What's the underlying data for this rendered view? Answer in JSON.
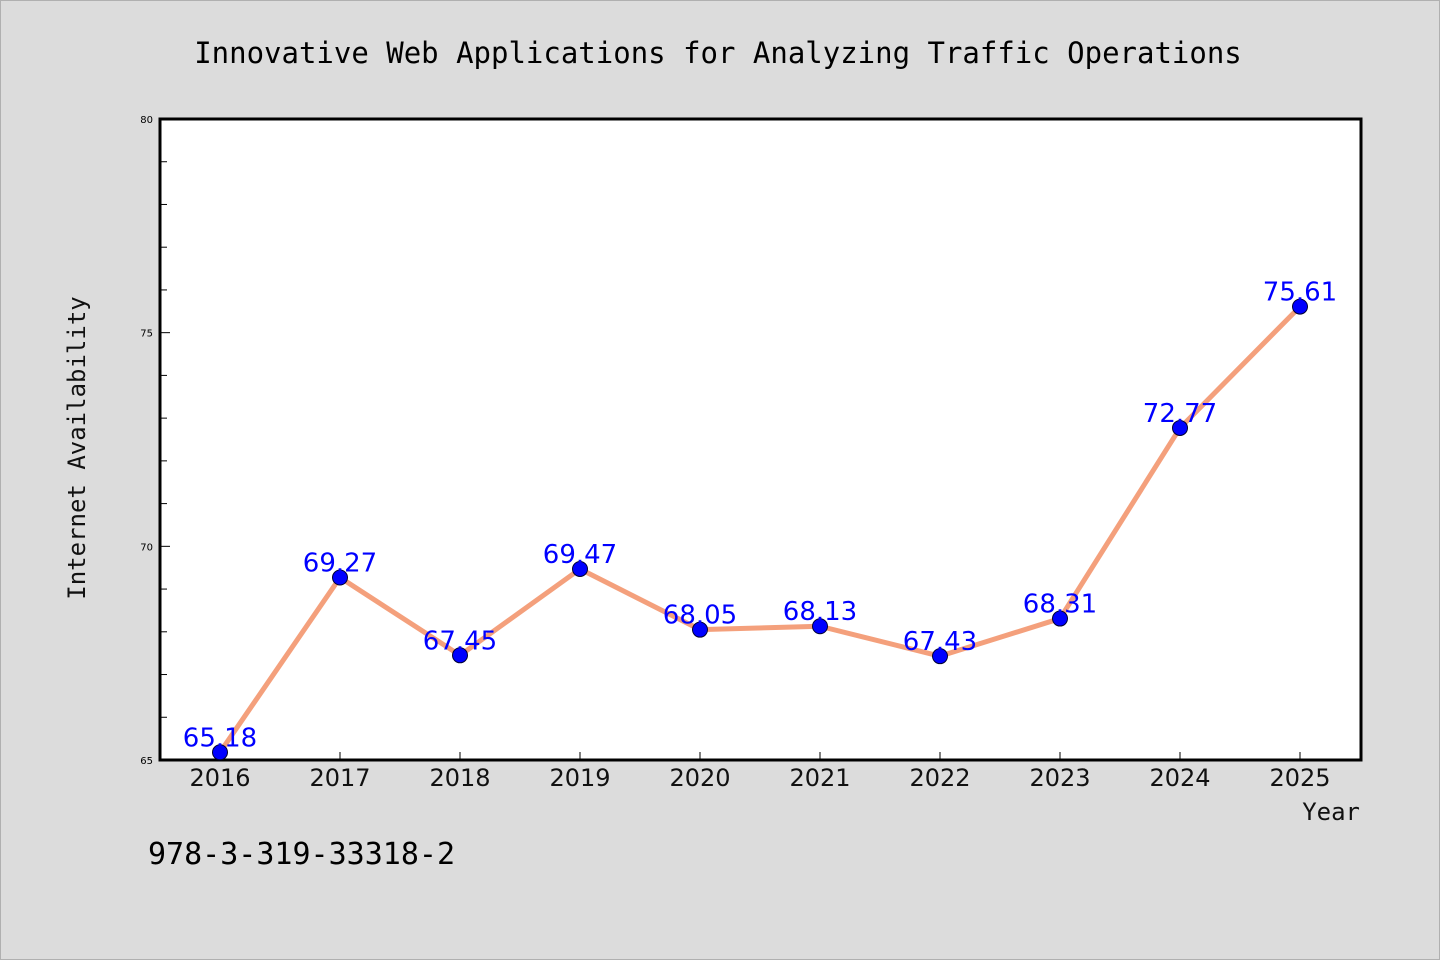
{
  "chart_data": {
    "type": "line",
    "title": "Innovative Web Applications for Analyzing Traffic Operations",
    "xlabel": "Year",
    "ylabel": "Internet Availability",
    "categories": [
      "2016",
      "2017",
      "2018",
      "2019",
      "2020",
      "2021",
      "2022",
      "2023",
      "2024",
      "2025"
    ],
    "series": [
      {
        "values": [
          65.18,
          69.27,
          67.45,
          69.47,
          68.05,
          68.13,
          67.43,
          68.31,
          72.77,
          75.61
        ],
        "labels": [
          "65.18",
          "69.27",
          "67.45",
          "69.47",
          "68.05",
          "68.13",
          "67.43",
          "68.31",
          "72.77",
          "75.61"
        ],
        "line_color": "#f4a07c",
        "marker_color": "#0000ff"
      }
    ],
    "ylim": [
      65,
      80
    ],
    "yticks": [
      "65",
      "70",
      "75",
      "80"
    ],
    "grid": false,
    "legend": "none"
  },
  "footer": {
    "isbn": "978-3-319-33318-2"
  }
}
